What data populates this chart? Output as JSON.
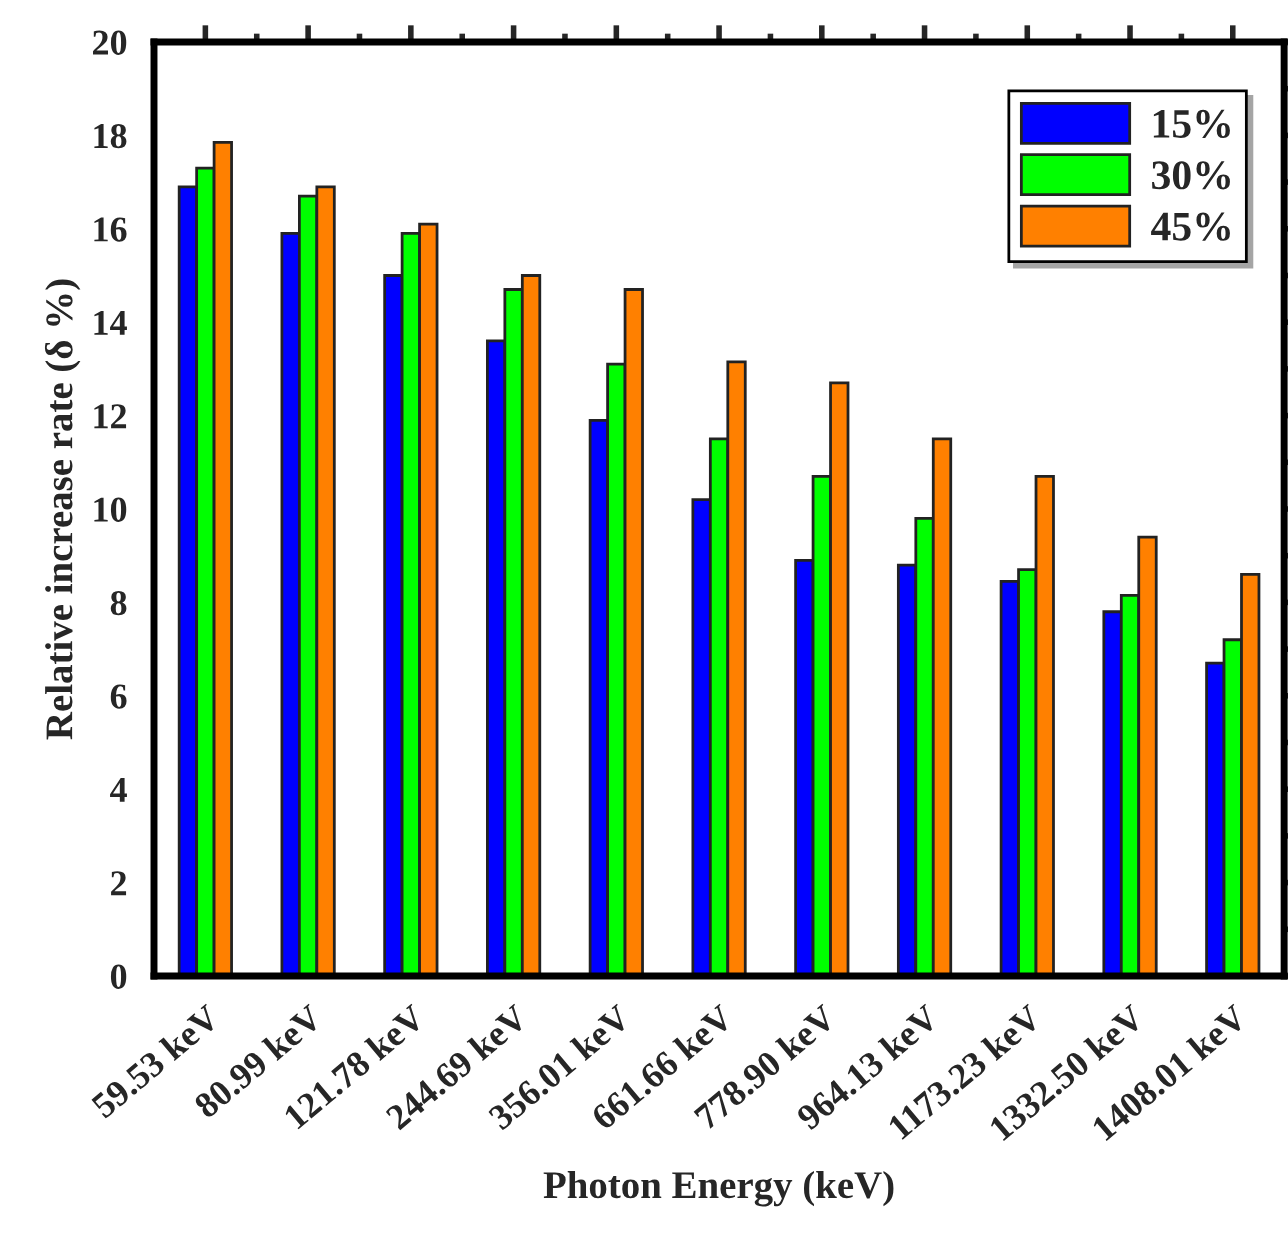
{
  "chart_data": {
    "type": "bar",
    "xlabel": "Photon Energy (keV)",
    "ylabel": "Relative increase rate (δ %)",
    "categories": [
      "59.53 keV",
      "80.99 keV",
      "121.78 keV",
      "244.69 keV",
      "356.01 keV",
      "661.66 keV",
      "778.90 keV",
      "964.13 keV",
      "1173.23 keV",
      "1332.50 keV",
      "1408.01 keV"
    ],
    "series": [
      {
        "name": "15%",
        "color": "#0000ff",
        "values": [
          16.9,
          15.9,
          15.0,
          13.6,
          11.9,
          10.2,
          8.9,
          8.8,
          8.45,
          7.8,
          6.7
        ]
      },
      {
        "name": "30%",
        "color": "#00ff00",
        "values": [
          17.3,
          16.7,
          15.9,
          14.7,
          13.1,
          11.5,
          10.7,
          9.8,
          8.7,
          8.15,
          7.2
        ]
      },
      {
        "name": "45%",
        "color": "#ff8000",
        "values": [
          17.85,
          16.9,
          16.1,
          15.0,
          14.7,
          13.15,
          12.7,
          11.5,
          10.7,
          9.4,
          8.6
        ]
      }
    ],
    "ylim": [
      0,
      20
    ],
    "yticks": [
      0,
      2,
      4,
      6,
      8,
      10,
      12,
      14,
      16,
      18,
      20
    ],
    "grid": false,
    "legend": "top right"
  }
}
